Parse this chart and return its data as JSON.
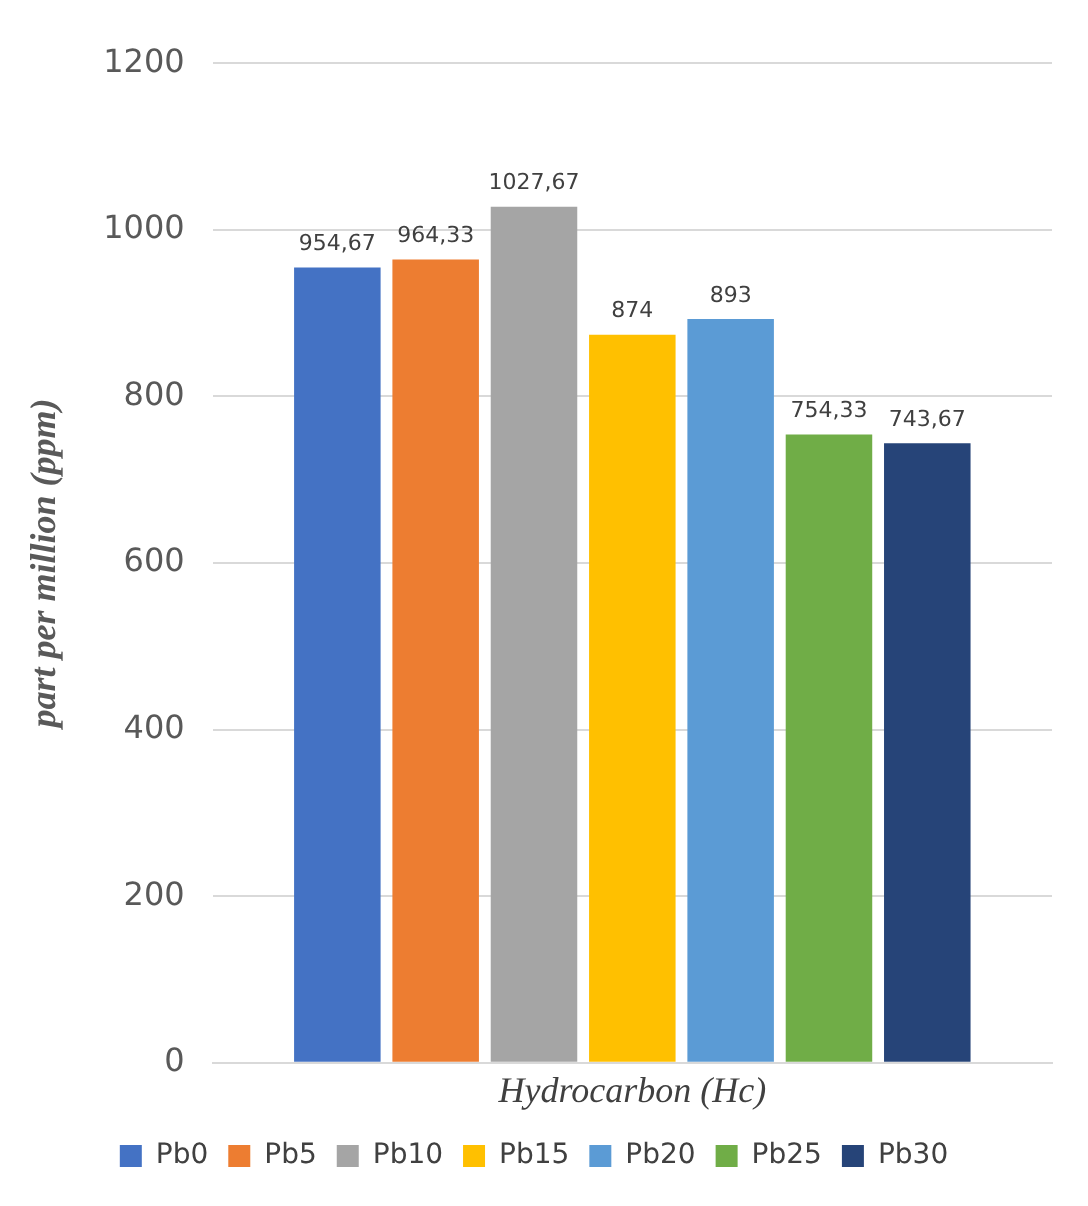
{
  "chart_data": {
    "type": "bar",
    "xlabel": "Hydrocarbon (Hc)",
    "ylabel": "part per million (ppm)",
    "categories": [
      null
    ],
    "series": [
      {
        "name": "Pb0",
        "color": "#4472c4",
        "values": [
          954.67
        ],
        "value_labels": [
          "954,67"
        ]
      },
      {
        "name": "Pb5",
        "color": "#ed7d31",
        "values": [
          964.33
        ],
        "value_labels": [
          "964,33"
        ]
      },
      {
        "name": "Pb10",
        "color": "#a5a5a5",
        "values": [
          1027.67
        ],
        "value_labels": [
          "1027,67"
        ]
      },
      {
        "name": "Pb15",
        "color": "#ffc000",
        "values": [
          874
        ],
        "value_labels": [
          "874"
        ]
      },
      {
        "name": "Pb20",
        "color": "#5b9bd5",
        "values": [
          893
        ],
        "value_labels": [
          "893"
        ]
      },
      {
        "name": "Pb25",
        "color": "#70ad47",
        "values": [
          754.33
        ],
        "value_labels": [
          "754,33"
        ]
      },
      {
        "name": "Pb30",
        "color": "#264478",
        "values": [
          743.67
        ],
        "value_labels": [
          "743,67"
        ]
      }
    ],
    "ylim": [
      0,
      1200
    ],
    "yticks": [
      0,
      200,
      400,
      600,
      800,
      1000,
      1200
    ],
    "grid": "y",
    "legend": "bottom"
  }
}
